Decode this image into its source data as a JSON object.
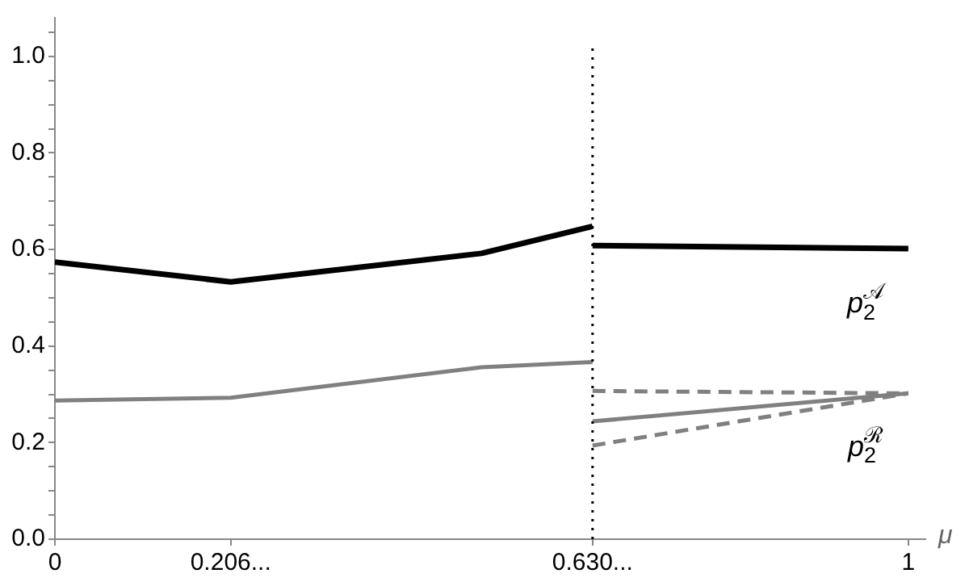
{
  "chart_data": {
    "type": "line",
    "xlabel": "μ",
    "xlim": [
      0,
      1.02
    ],
    "ylim": [
      0,
      1.08
    ],
    "xticks": [
      0,
      {
        "value": 0.206,
        "label": "0.206..."
      },
      {
        "value": 0.63,
        "label": "0.630..."
      },
      1
    ],
    "yticks": [
      {
        "value": 0,
        "label": "0.0"
      },
      {
        "value": 0.05,
        "label": null
      },
      {
        "value": 0.1,
        "label": null
      },
      {
        "value": 0.15,
        "label": null
      },
      {
        "value": 0.2,
        "label": "0.2"
      },
      {
        "value": 0.25,
        "label": null
      },
      {
        "value": 0.3,
        "label": null
      },
      {
        "value": 0.35,
        "label": null
      },
      {
        "value": 0.4,
        "label": "0.4"
      },
      {
        "value": 0.45,
        "label": null
      },
      {
        "value": 0.5,
        "label": null
      },
      {
        "value": 0.55,
        "label": null
      },
      {
        "value": 0.6,
        "label": "0.6"
      },
      {
        "value": 0.65,
        "label": null
      },
      {
        "value": 0.7,
        "label": null
      },
      {
        "value": 0.75,
        "label": null
      },
      {
        "value": 0.8,
        "label": "0.8"
      },
      {
        "value": 0.85,
        "label": null
      },
      {
        "value": 0.9,
        "label": null
      },
      {
        "value": 0.95,
        "label": null
      },
      {
        "value": 1,
        "label": "1.0"
      },
      {
        "value": 1.05,
        "label": null
      }
    ],
    "grid": false,
    "legend": false,
    "marker": "none",
    "line_style": "solid",
    "series": [
      {
        "color": "#000000",
        "x": [
          0,
          0.206,
          0.5,
          0.63
        ],
        "values": [
          0.574,
          0.533,
          0.592,
          0.648
        ]
      },
      {
        "color": "#000000",
        "x": [
          0.63,
          1
        ],
        "values": [
          0.608,
          0.602
        ]
      },
      {
        "color": "#808080",
        "x": [
          0,
          0.206,
          0.5,
          0.63
        ],
        "values": [
          0.287,
          0.293,
          0.356,
          0.367
        ]
      },
      {
        "color": "#808080",
        "x": [
          0.63,
          1
        ],
        "values": [
          0.244,
          0.302
        ]
      },
      {
        "color": "#808080",
        "line_style": "dashed",
        "x": [
          0.63,
          1
        ],
        "values": [
          0.307,
          0.302
        ]
      },
      {
        "color": "#808080",
        "line_style": "dashed",
        "x": [
          0.63,
          1
        ],
        "values": [
          0.194,
          0.302
        ]
      }
    ],
    "ref_lines": [
      {
        "axis": "x",
        "value": 0.63,
        "color": "#000000",
        "line_style": "dotted"
      }
    ],
    "annotations": [
      "p$_{2}$$^{𝒜}$",
      "p$_{2}$$^{ℛ}$"
    ]
  }
}
